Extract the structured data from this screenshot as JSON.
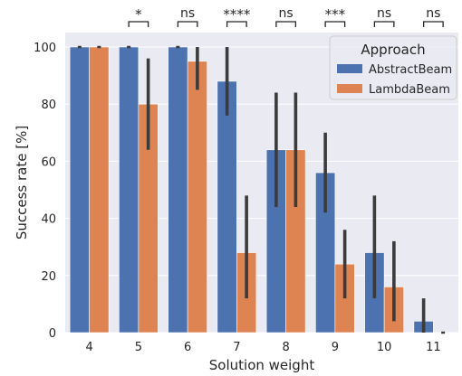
{
  "chart_data": {
    "type": "bar",
    "xlabel": "Solution weight",
    "ylabel": "Success rate [%]",
    "ylim": [
      0,
      105
    ],
    "yticks": [
      0,
      20,
      40,
      60,
      80,
      100
    ],
    "grid": true,
    "legend_position": "top-right",
    "legend_title": "Approach",
    "categories": [
      "4",
      "5",
      "6",
      "7",
      "8",
      "9",
      "10",
      "11"
    ],
    "series": [
      {
        "name": "AbstractBeam",
        "color": "#4c72b0",
        "values": [
          100,
          100,
          100,
          88,
          64,
          56,
          28,
          4
        ],
        "ci_low": [
          100,
          100,
          100,
          76,
          44,
          42,
          12,
          0
        ],
        "ci_high": [
          100,
          100,
          100,
          100,
          84,
          70,
          48,
          12
        ]
      },
      {
        "name": "LambdaBeam",
        "color": "#dd8452",
        "values": [
          100,
          80,
          95,
          28,
          64,
          24,
          16,
          0
        ],
        "ci_low": [
          100,
          64,
          85,
          12,
          44,
          12,
          4,
          0
        ],
        "ci_high": [
          100,
          96,
          100,
          48,
          84,
          36,
          32,
          0
        ]
      }
    ],
    "significance": [
      "",
      "*",
      "ns",
      "****",
      "ns",
      "***",
      "ns",
      "ns"
    ]
  }
}
